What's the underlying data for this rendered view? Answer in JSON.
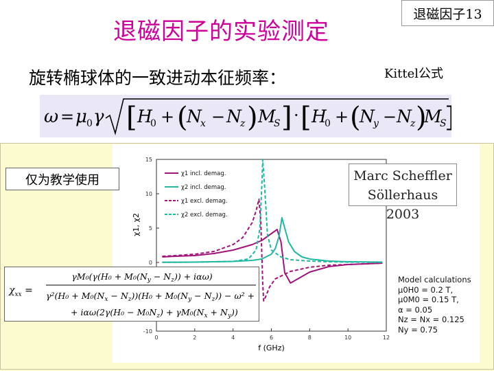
{
  "slide": {
    "title": "退磁因子的实验测定",
    "page_label": "退磁因子13",
    "subtitle": "旋转椭球体的一致进动本征频率：",
    "kittel_label": "Kittel公式",
    "edu_notice": "仅为教学使用",
    "credit": [
      "Marc Scheffler",
      "Söllerhaus 2003"
    ]
  },
  "formula": {
    "kittel": "ω = μ0γ √([H0 + (Nx − Nz)MS]·[H0 + (Ny − Nz)MS])",
    "chi_lhs": "χxx =",
    "chi_num": "γM0(γ(H0 + M0(Ny − Nz)) + iαω)",
    "chi_den_1": "γ²(H0 + M0(Nx − Nz))(H0 + M0(Ny − Nz)) − ω² +",
    "chi_den_2": "+ iαω(2γ(H0 − M0Nz) + γM0(Nx + Ny))"
  },
  "params": {
    "heading": "Model calculations",
    "lines": [
      "μ0H0 = 0.2 T,",
      "μ0M0 = 0.15 T,",
      "α = 0.05",
      "Nz = Nx = 0.125",
      "Ny = 0.75"
    ]
  },
  "chart_data": {
    "type": "line",
    "xlabel": "f (GHz)",
    "ylabel": "χ1, χ2",
    "xlim": [
      0,
      12
    ],
    "ylim": [
      -10,
      15
    ],
    "x_ticks": [
      "0",
      "2",
      "4",
      "6",
      "8",
      "10",
      "12"
    ],
    "y_ticks": [
      "15",
      "10",
      "5",
      "0",
      "-5",
      "-10"
    ],
    "legend_position": "top-left",
    "series": [
      {
        "name": "χ1 incl. demag.",
        "color": "#a0147a",
        "dash": "solid",
        "x": [
          0.3,
          1,
          2,
          3,
          4,
          5,
          5.5,
          6,
          6.3,
          6.5,
          6.7,
          7,
          7.5,
          8,
          9,
          10,
          11.8
        ],
        "y": [
          0.8,
          0.9,
          1.0,
          1.3,
          1.8,
          2.6,
          3.2,
          4.2,
          4.8,
          3.0,
          -1.5,
          -3.0,
          -2.2,
          -1.4,
          -0.6,
          -0.3,
          -0.1
        ]
      },
      {
        "name": "χ2 incl. demag.",
        "color": "#20b8a0",
        "dash": "solid",
        "x": [
          0.3,
          2,
          4,
          5,
          5.5,
          6,
          6.2,
          6.4,
          6.55,
          6.7,
          6.9,
          7.2,
          7.6,
          8,
          9,
          10,
          11.8
        ],
        "y": [
          0.02,
          0.05,
          0.15,
          0.3,
          0.5,
          1.2,
          2.0,
          3.8,
          6.5,
          5.0,
          3.0,
          1.6,
          0.8,
          0.5,
          0.2,
          0.1,
          0.05
        ]
      },
      {
        "name": "χ1 excl. demag.",
        "color": "#a0147a",
        "dash": "dashed",
        "x": [
          0.3,
          1,
          2,
          3,
          4,
          4.5,
          5,
          5.2,
          5.35,
          5.45,
          5.55,
          5.6,
          5.7,
          5.9,
          6.2,
          7,
          8,
          9,
          10,
          11.8
        ],
        "y": [
          0.9,
          1.0,
          1.2,
          1.6,
          2.6,
          3.6,
          5.8,
          7.5,
          9.2,
          6.0,
          -3.0,
          -5.6,
          -5.0,
          -3.6,
          -2.4,
          -1.3,
          -0.7,
          -0.4,
          -0.3,
          -0.1
        ]
      },
      {
        "name": "χ2 excl. demag.",
        "color": "#20b8a0",
        "dash": "dashed",
        "x": [
          0.3,
          2,
          4,
          4.8,
          5.2,
          5.4,
          5.5,
          5.55,
          5.65,
          5.8,
          6.0,
          6.5,
          7,
          8,
          9,
          10,
          11.8
        ],
        "y": [
          0.02,
          0.05,
          0.15,
          0.5,
          1.8,
          5.0,
          11.0,
          15.0,
          11.0,
          4.0,
          1.8,
          0.8,
          0.4,
          0.2,
          0.1,
          0.05,
          0.02
        ]
      }
    ]
  }
}
